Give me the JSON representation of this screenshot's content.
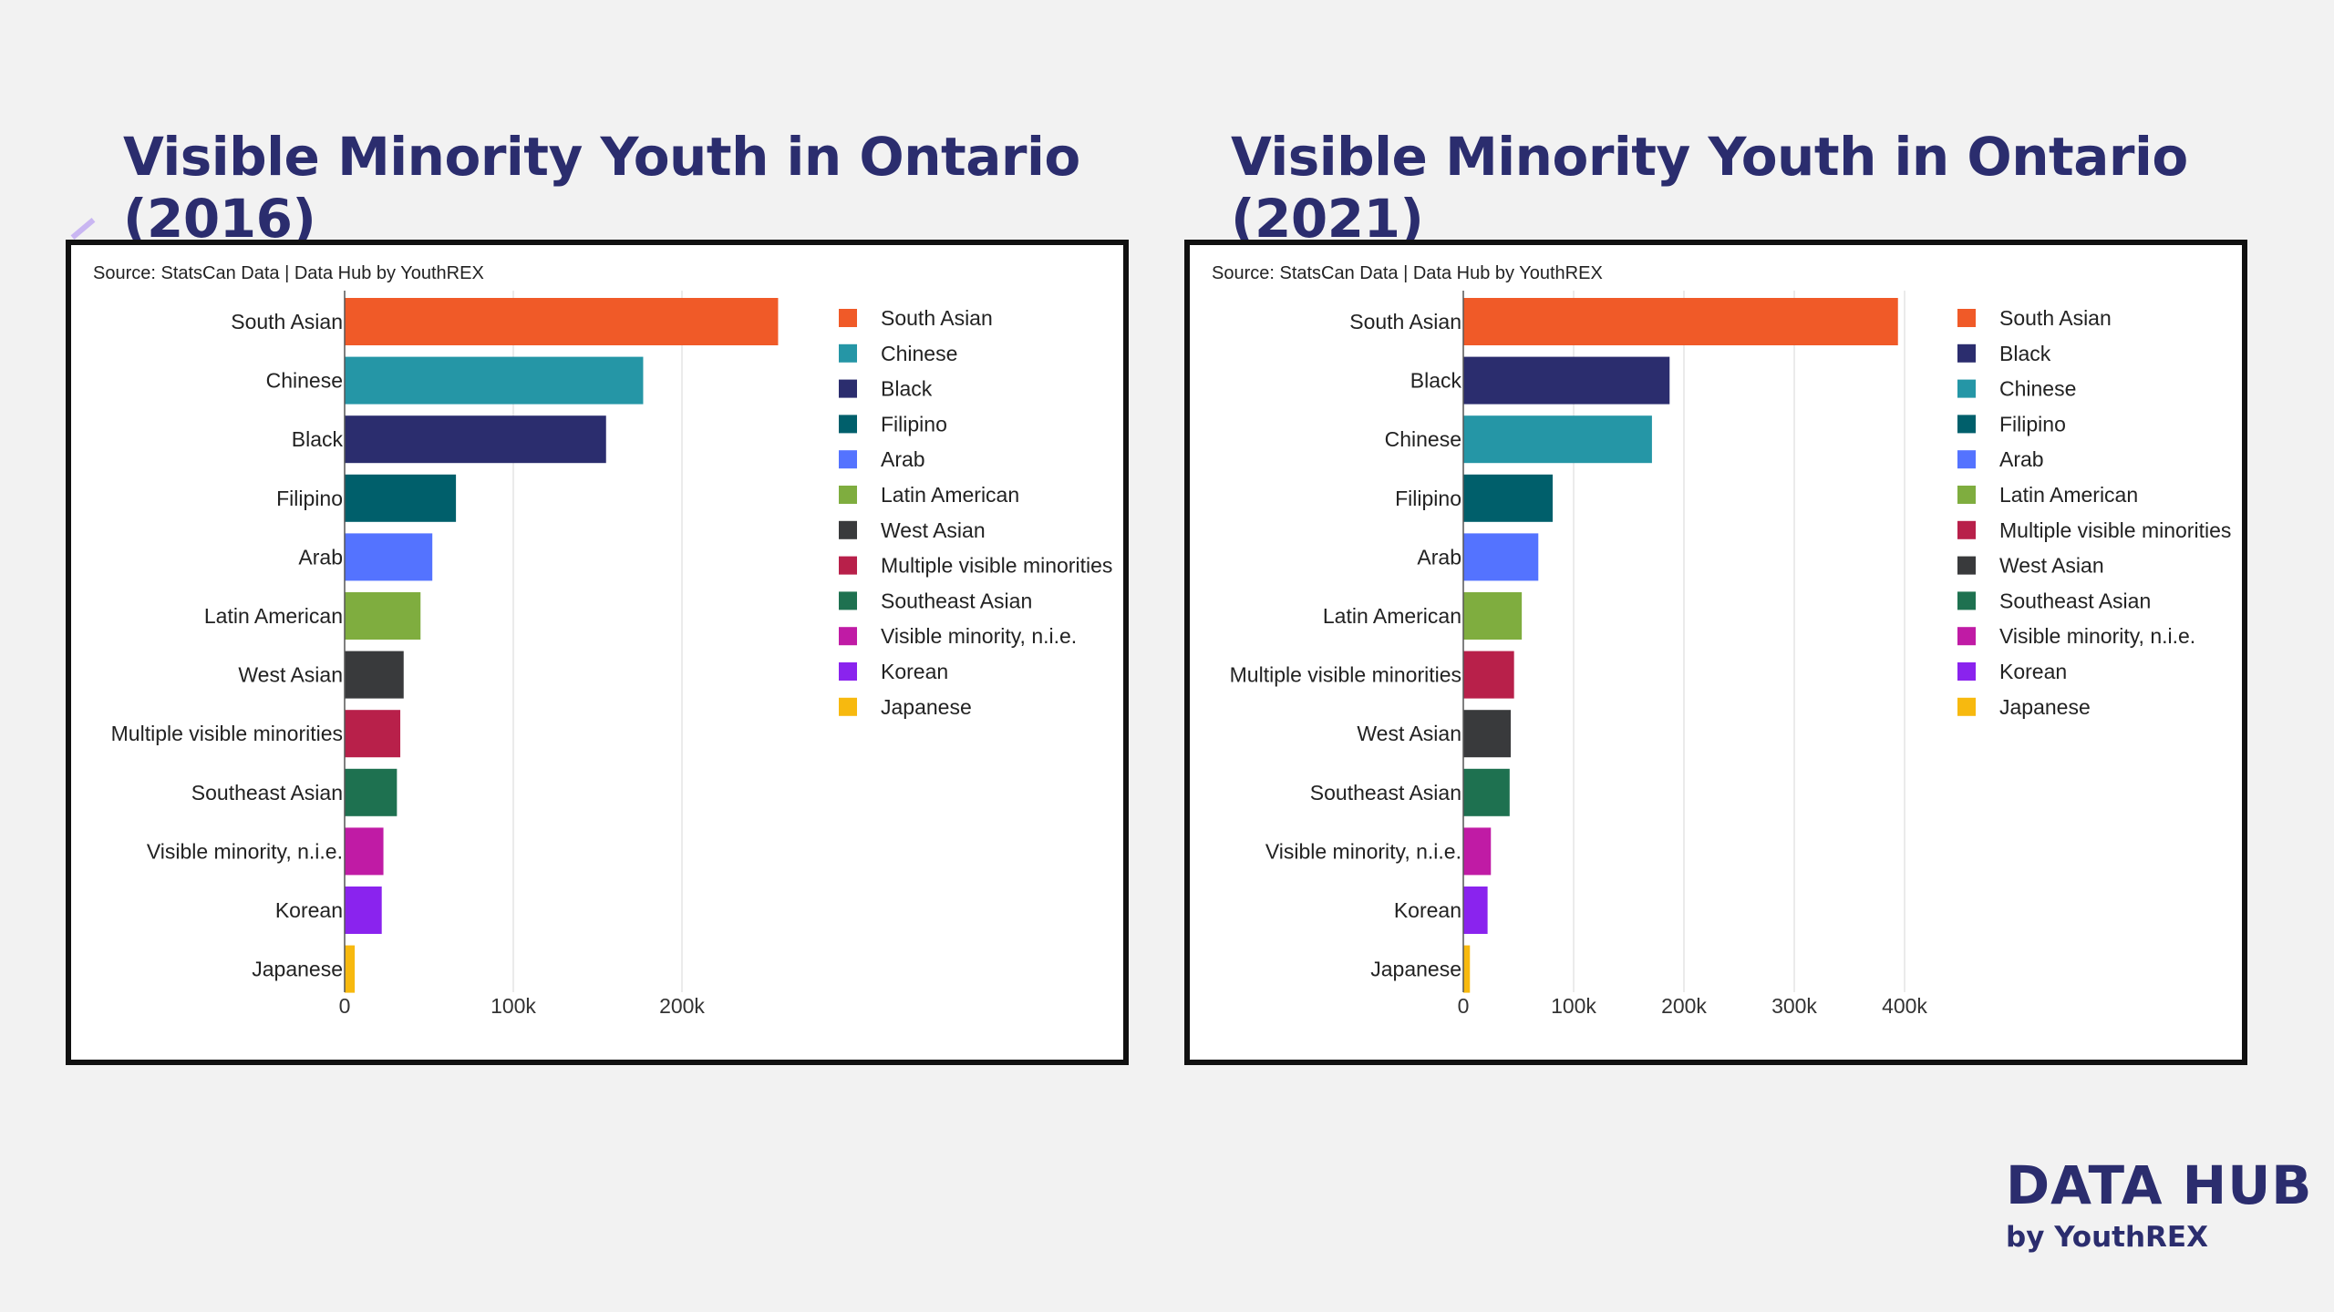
{
  "titles": {
    "left": "Visible Minority Youth in Ontario (2016)",
    "right": "Visible Minority Youth in Ontario (2021)"
  },
  "brand": {
    "main": "DATA HUB",
    "sub": "by YouthREX"
  },
  "chart_data": [
    {
      "type": "bar",
      "orientation": "horizontal",
      "title": "Visible Minority Youth in Ontario (2016)",
      "source": "Source: StatsCan Data | Data Hub by YouthREX",
      "xlim": [
        0,
        250000
      ],
      "xticks": [
        0,
        100000,
        200000
      ],
      "xtick_labels": [
        "0",
        "100k",
        "200k"
      ],
      "grid": true,
      "legend_position": "right",
      "categories": [
        "South Asian",
        "Chinese",
        "Black",
        "Filipino",
        "Arab",
        "Latin American",
        "West Asian",
        "Multiple visible minorities",
        "Southeast Asian",
        "Visible minority, n.i.e.",
        "Korean",
        "Japanese"
      ],
      "values": [
        257000,
        177000,
        155000,
        66000,
        52000,
        45000,
        35000,
        33000,
        31000,
        23000,
        22000,
        6000
      ],
      "colors": [
        "#f05a28",
        "#2596a6",
        "#2b2d6e",
        "#005f6b",
        "#5473ff",
        "#7fad3f",
        "#393a3c",
        "#b8204a",
        "#1e7150",
        "#c01ba5",
        "#8a23ee",
        "#f7b90f"
      ],
      "legend": [
        "South Asian",
        "Chinese",
        "Black",
        "Filipino",
        "Arab",
        "Latin American",
        "West Asian",
        "Multiple visible minorities",
        "Southeast Asian",
        "Visible minority, n.i.e.",
        "Korean",
        "Japanese"
      ]
    },
    {
      "type": "bar",
      "orientation": "horizontal",
      "title": "Visible Minority Youth in Ontario (2021)",
      "source": "Source: StatsCan Data | Data Hub by YouthREX",
      "xlim": [
        0,
        400000
      ],
      "xticks": [
        0,
        100000,
        200000,
        300000,
        400000
      ],
      "xtick_labels": [
        "0",
        "100k",
        "200k",
        "300k",
        "400k"
      ],
      "grid": true,
      "legend_position": "right",
      "categories": [
        "South Asian",
        "Black",
        "Chinese",
        "Filipino",
        "Arab",
        "Latin American",
        "Multiple visible minorities",
        "West Asian",
        "Southeast Asian",
        "Visible minority, n.i.e.",
        "Korean",
        "Japanese"
      ],
      "values": [
        394000,
        187000,
        171000,
        81000,
        68000,
        53000,
        46000,
        43000,
        42000,
        25000,
        22000,
        6000
      ],
      "colors": [
        "#f05a28",
        "#2b2d6e",
        "#2596a6",
        "#005f6b",
        "#5473ff",
        "#7fad3f",
        "#b8204a",
        "#393a3c",
        "#1e7150",
        "#c01ba5",
        "#8a23ee",
        "#f7b90f"
      ],
      "legend": [
        "South Asian",
        "Black",
        "Chinese",
        "Filipino",
        "Arab",
        "Latin American",
        "Multiple visible minorities",
        "West Asian",
        "Southeast Asian",
        "Visible minority, n.i.e.",
        "Korean",
        "Japanese"
      ]
    }
  ]
}
